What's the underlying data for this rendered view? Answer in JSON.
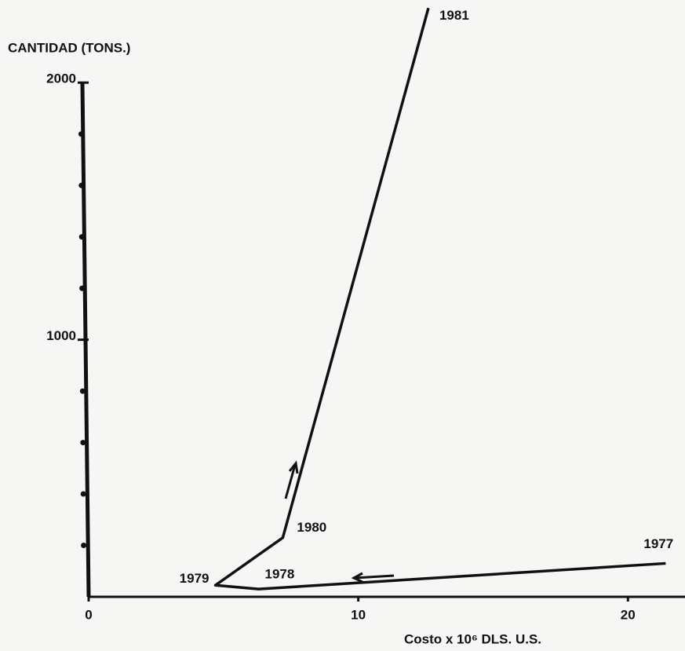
{
  "chart_data": {
    "type": "line",
    "y_axis_label": "CANTIDAD (TONS.)",
    "x_axis_label": "Costo x 10⁶  DLS.  U.S.",
    "x": [
      21.4,
      6.3,
      4.7,
      7.2,
      12.6
    ],
    "series": [
      {
        "name": "Cantidad",
        "color": "#111111",
        "values": [
          130,
          30,
          45,
          230,
          2290
        ],
        "point_labels": [
          "1977",
          "1978",
          "1979",
          "1980",
          "1981"
        ]
      }
    ],
    "xlim": [
      0,
      22
    ],
    "xticks": [
      0,
      10,
      20
    ],
    "ylim": [
      0,
      2300
    ],
    "yticks": [
      1000,
      2000
    ],
    "yminorticks": [
      200,
      400,
      600,
      800,
      1200,
      1400,
      1600,
      1800
    ]
  }
}
